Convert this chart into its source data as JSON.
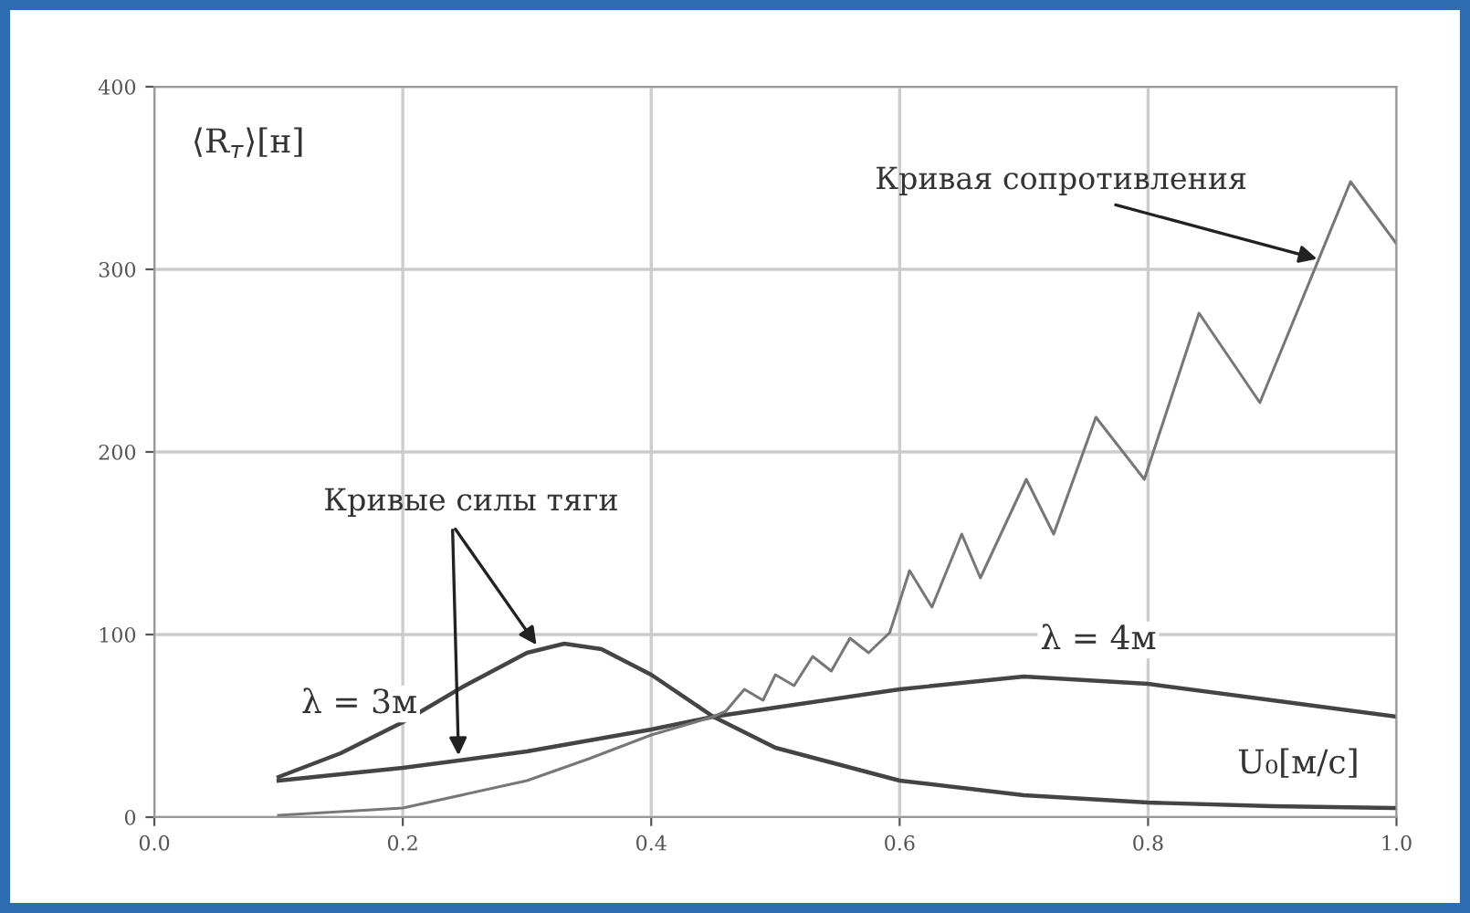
{
  "chart_data": {
    "type": "line",
    "xlabel": "U₀[м/с]",
    "ylabel": "⟨R$_{т}$⟩[н]",
    "xlim": [
      0.0,
      1.0
    ],
    "ylim": [
      0,
      400
    ],
    "xticks": [
      {
        "value": 0.0,
        "label": "0.0"
      },
      0.2,
      0.4,
      0.6,
      0.8,
      {
        "value": 1.0,
        "label": "1.0"
      }
    ],
    "yticks": [
      0,
      100,
      200,
      300,
      400
    ],
    "grid": true,
    "legend": false,
    "marker": "none",
    "line_style": "solid",
    "series": [
      {
        "name": "λ = 3м",
        "color": "#444444",
        "x": [
          0.1,
          0.15,
          0.2,
          0.25,
          0.3,
          0.33,
          0.36,
          0.4,
          0.45,
          0.5,
          0.6,
          0.7,
          0.8,
          0.9,
          1.0
        ],
        "values": [
          22,
          35,
          52,
          72,
          90,
          95,
          92,
          78,
          55,
          38,
          20,
          12,
          8,
          6,
          5
        ]
      },
      {
        "name": "λ = 4м",
        "color": "#444444",
        "x": [
          0.1,
          0.2,
          0.3,
          0.4,
          0.45,
          0.5,
          0.6,
          0.7,
          0.8,
          0.9,
          1.0
        ],
        "values": [
          20,
          27,
          36,
          48,
          55,
          60,
          70,
          77,
          73,
          64,
          55
        ]
      },
      {
        "color": "#777777",
        "x": [
          0.1,
          0.2,
          0.3,
          0.35,
          0.4,
          0.45,
          0.46,
          0.475,
          0.49,
          0.5,
          0.515,
          0.53,
          0.545,
          0.56,
          0.575,
          0.592,
          0.608,
          0.626,
          0.65,
          0.665,
          0.702,
          0.724,
          0.758,
          0.797,
          0.841,
          0.89,
          0.963,
          1.0
        ],
        "values": [
          1,
          5,
          20,
          32,
          45,
          55,
          58,
          70,
          64,
          78,
          72,
          88,
          80,
          98,
          90,
          101,
          135,
          115,
          155,
          131,
          185,
          155,
          219,
          185,
          276,
          227,
          348,
          314
        ]
      }
    ],
    "annotations": [
      {
        "text": "Кривая сопротивления",
        "x": 0.94,
        "y": 305
      },
      {
        "text": "Кривые силы тяги",
        "x": 0.31,
        "y": 92
      }
    ]
  }
}
